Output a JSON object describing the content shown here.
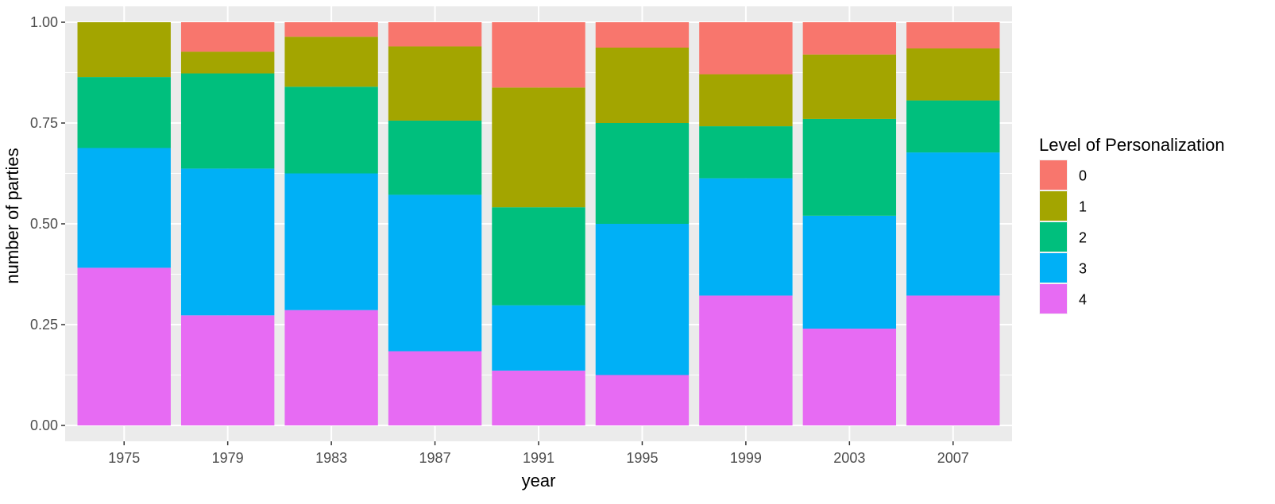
{
  "chart_data": {
    "type": "bar",
    "stacked": true,
    "xlabel": "year",
    "ylabel": "number of parties",
    "ylim": [
      0,
      1
    ],
    "yticks": [
      "0.00",
      "0.25",
      "0.50",
      "0.75",
      "1.00"
    ],
    "categories": [
      "1975",
      "1979",
      "1983",
      "1987",
      "1991",
      "1995",
      "1999",
      "2003",
      "2007"
    ],
    "legend": {
      "title": "Level of Personalization",
      "placement": "right"
    },
    "grid": true,
    "series": [
      {
        "name": "0",
        "color": "#F8766D",
        "values": [
          0.0,
          0.073,
          0.036,
          0.06,
          0.162,
          0.063,
          0.129,
          0.08,
          0.065
        ]
      },
      {
        "name": "1",
        "color": "#A3A500",
        "values": [
          0.136,
          0.054,
          0.124,
          0.184,
          0.297,
          0.187,
          0.129,
          0.16,
          0.129
        ]
      },
      {
        "name": "2",
        "color": "#00BF7D",
        "values": [
          0.176,
          0.236,
          0.215,
          0.184,
          0.243,
          0.25,
          0.129,
          0.24,
          0.129
        ]
      },
      {
        "name": "3",
        "color": "#00B0F6",
        "values": [
          0.297,
          0.364,
          0.339,
          0.388,
          0.162,
          0.375,
          0.291,
          0.28,
          0.355
        ]
      },
      {
        "name": "4",
        "color": "#E76BF3",
        "values": [
          0.391,
          0.273,
          0.286,
          0.184,
          0.136,
          0.125,
          0.322,
          0.24,
          0.322
        ]
      }
    ]
  }
}
